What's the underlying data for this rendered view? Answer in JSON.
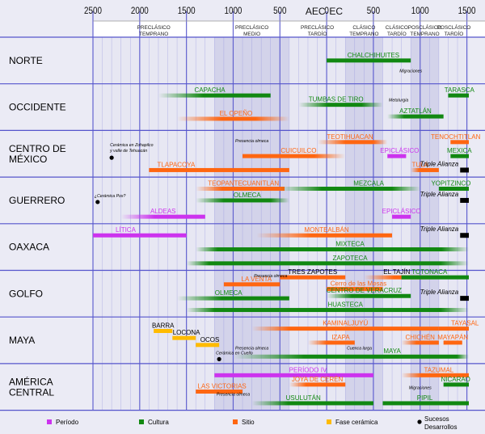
{
  "colors": {
    "periodo": "#cc33ee",
    "cultura": "#118811",
    "sitio": "#ff6611",
    "fase": "#ffbb00",
    "evento": "#000000",
    "band_light": "#e7e7f3",
    "band_dark": "#d3d3ea",
    "grid": "#8888dd",
    "grid_main": "#5555cc"
  },
  "chart_data": {
    "type": "timeline",
    "x_ticks": [
      -2500,
      -2000,
      -1500,
      -1000,
      -500,
      0,
      500,
      1000,
      1500
    ],
    "x_tick_labels": [
      "2500",
      "2000",
      "1500",
      "1000",
      "500",
      "0",
      "500",
      "1000",
      "1500"
    ],
    "era_labels": [
      {
        "text": "AEC",
        "x": -120
      },
      {
        "text": "EC",
        "x": 100
      }
    ],
    "xlim": [
      -2500,
      1521
    ],
    "periods": [
      {
        "start": -2500,
        "end": -1200,
        "shade": "light",
        "lines": [
          "PRECLÁSICO",
          "TEMPRANO"
        ]
      },
      {
        "start": -1200,
        "end": -400,
        "shade": "dark",
        "lines": [
          "PRECLÁSICO",
          "MEDIO"
        ]
      },
      {
        "start": -400,
        "end": 200,
        "shade": "light",
        "lines": [
          "PRECLÁSICO",
          "TARDÍO"
        ]
      },
      {
        "start": 200,
        "end": 600,
        "shade": "dark",
        "lines": [
          "CLÁSICO",
          "TEMPRANO"
        ]
      },
      {
        "start": 600,
        "end": 900,
        "shade": "light",
        "lines": [
          "CLÁSICO",
          "TARDÍO"
        ]
      },
      {
        "start": 900,
        "end": 1200,
        "shade": "dark",
        "lines": [
          "POSCLÁSICO",
          "TEMPRANO"
        ]
      },
      {
        "start": 1200,
        "end": 1521,
        "shade": "light",
        "lines": [
          "POSCLÁSICO",
          "TARDÍO"
        ]
      }
    ],
    "regions": [
      {
        "lines": [
          "NORTE"
        ],
        "bars": [
          {
            "label": "CHALCHIHUITES",
            "start": 0,
            "end": 900,
            "type": "cultura",
            "row": 0.5,
            "lx": 500
          }
        ],
        "events": [
          {
            "label": "Migraciones",
            "x": 900,
            "row": 0.75
          }
        ]
      },
      {
        "lines": [
          "OCCIDENTE"
        ],
        "bars": [
          {
            "label": "CAPACHA",
            "start": -1800,
            "end": -600,
            "type": "cultura",
            "row": 0.25,
            "fade_left": 0.4,
            "lx": -1250
          },
          {
            "label": "TARASCA",
            "start": 1300,
            "end": 1521,
            "type": "cultura",
            "row": 0.25,
            "lx": 1420
          },
          {
            "label": "TUMBAS DE TIRO",
            "start": -300,
            "end": 600,
            "type": "cultura",
            "row": 0.45,
            "fade_left": 0.35,
            "fade_right": 0.25,
            "lx": 100
          },
          {
            "label": "AZTATLÁN",
            "start": 650,
            "end": 1250,
            "type": "cultura",
            "row": 0.7,
            "fade_left": 0.3,
            "lx": 950
          },
          {
            "label": "EL OPEÑO",
            "start": -1600,
            "end": -400,
            "type": "sitio",
            "row": 0.75,
            "fade_left": 0.4,
            "fade_right": 0.3,
            "lx": -970
          }
        ],
        "events": [
          {
            "label": "Metalurgia",
            "x": 770,
            "row": 0.38
          }
        ]
      },
      {
        "lines": [
          "CENTRO DE",
          "MÉXICO"
        ],
        "bars": [
          {
            "label": "TEOTIHUACAN",
            "start": -100,
            "end": 650,
            "type": "sitio",
            "row": 0.25,
            "fade_left": 0.4,
            "fade_right": 0.2,
            "lx": 250
          },
          {
            "label": "TENOCHTITLAN",
            "start": 1325,
            "end": 1521,
            "type": "sitio",
            "row": 0.25,
            "lx": 1380
          },
          {
            "label": "CUICUILCO",
            "start": -900,
            "end": 200,
            "type": "sitio",
            "row": 0.55,
            "fade_right": 0.3,
            "lx": -300
          },
          {
            "label": "EPICLÁSICO",
            "start": 650,
            "end": 850,
            "type": "periodo",
            "row": 0.55,
            "lx": 780
          },
          {
            "label": "MEXICA",
            "start": 1325,
            "end": 1521,
            "type": "cultura",
            "row": 0.55,
            "lx": 1420
          },
          {
            "label": "TLAPACOYA",
            "start": -1900,
            "end": -400,
            "type": "sitio",
            "row": 0.85,
            "lx": -1610
          },
          {
            "label": "TULA",
            "start": 900,
            "end": 1200,
            "type": "sitio",
            "row": 0.85,
            "fade_left": 0.3,
            "lx": 1000
          },
          {
            "label": "Triple Alianza",
            "start": 1428,
            "end": 1521,
            "type": "evento",
            "row": 0.85,
            "italic": true,
            "lx": 1290
          }
        ],
        "events": [
          {
            "label": "Cerámica en Zohapilco",
            "label2": "y valle de Tehuacán",
            "x": -2300,
            "row": 0.55,
            "dot": true
          },
          {
            "label": "Presencia olmeca",
            "x": -800,
            "row": 0.25
          }
        ]
      },
      {
        "lines": [
          "GUERRERO"
        ],
        "bars": [
          {
            "label": "TEOPANTECUANITLÁN",
            "start": -1400,
            "end": -450,
            "type": "sitio",
            "row": 0.25,
            "fade_left": 0.3,
            "lx": -890
          },
          {
            "label": "MEZCALA",
            "start": -500,
            "end": 1000,
            "type": "cultura",
            "row": 0.25,
            "fade_left": 0.3,
            "fade_right": 0.2,
            "lx": 450
          },
          {
            "label": "YOPITZINCO",
            "start": 1200,
            "end": 1521,
            "type": "cultura",
            "row": 0.25,
            "lx": 1330
          },
          {
            "label": "OLMECA",
            "start": -1400,
            "end": -400,
            "type": "cultura",
            "row": 0.5,
            "fade_left": 0.3,
            "fade_right": 0.2,
            "lx": -850
          },
          {
            "label": "Triple Alianza",
            "start": 1428,
            "end": 1521,
            "type": "evento",
            "row": 0.5,
            "italic": true,
            "lx": 1290
          },
          {
            "label": "ALDEAS",
            "start": -2200,
            "end": -1300,
            "type": "periodo",
            "row": 0.85,
            "fade_left": 0.4,
            "lx": -1750
          },
          {
            "label": "EPICLÁSICO",
            "start": 700,
            "end": 900,
            "type": "periodo",
            "row": 0.85,
            "lx": 800
          }
        ],
        "events": [
          {
            "label": "¿Cerámica Pox?",
            "x": -2450,
            "row": 0.5,
            "dot": true
          }
        ]
      },
      {
        "lines": [
          "OAXACA"
        ],
        "bars": [
          {
            "label": "LÍTICA",
            "start": -2500,
            "end": -1500,
            "type": "periodo",
            "row": 0.25,
            "lx": -2150
          },
          {
            "label": "MONTEALBÁN",
            "start": -750,
            "end": 700,
            "type": "sitio",
            "row": 0.25,
            "fade_left": 0.4,
            "lx": 0
          },
          {
            "label": "Triple Alianza",
            "start": 1428,
            "end": 1521,
            "type": "evento",
            "row": 0.25,
            "italic": true,
            "lx": 1290
          },
          {
            "label": "MIXTECA",
            "start": -1400,
            "end": 1521,
            "type": "cultura",
            "row": 0.55,
            "fade_left": 0.08,
            "fade_right": 0.1,
            "lx": 250
          },
          {
            "label": "ZAPOTECA",
            "start": -1500,
            "end": 1521,
            "type": "cultura",
            "row": 0.85,
            "fade_left": 0.08,
            "fade_right": 0.1,
            "lx": 250
          }
        ],
        "events": []
      },
      {
        "lines": [
          "GOLFO"
        ],
        "bars": [
          {
            "label": "TRES ZAPOTES",
            "start": -500,
            "end": 200,
            "type": "sitio",
            "row": 0.15,
            "lx": -150,
            "dark_label": true
          },
          {
            "label": "EL TAJÍN",
            "start": 400,
            "end": 1200,
            "type": "sitio",
            "row": 0.15,
            "fade_left": 0.4,
            "fade_right": 0.3,
            "lx": 750,
            "dark_label": true
          },
          {
            "label": "TOTONACA",
            "start": 800,
            "end": 1521,
            "type": "cultura",
            "row": 0.15,
            "lx": 1100
          },
          {
            "label": "LA VENTA",
            "start": -1100,
            "end": -500,
            "type": "sitio",
            "row": 0.3,
            "lx": -750
          },
          {
            "label": "Cerro de las Mesas",
            "start": 0,
            "end": 600,
            "type": "sitio",
            "row": 0.4,
            "lx": 340
          },
          {
            "label": "CENTRO DE VERACRUZ",
            "start": 0,
            "end": 900,
            "type": "cultura",
            "row": 0.55,
            "fade_left": 0.3,
            "lx": 400
          },
          {
            "label": "OLMECA",
            "start": -1600,
            "end": -400,
            "type": "cultura",
            "row": 0.6,
            "fade_left": 0.4,
            "lx": -1050
          },
          {
            "label": "Triple Alianza",
            "start": 1428,
            "end": 1521,
            "type": "evento",
            "row": 0.6,
            "italic": true,
            "lx": 1290
          },
          {
            "label": "HUASTECA",
            "start": -1500,
            "end": 1521,
            "type": "cultura",
            "row": 0.85,
            "fade_left": 0.1,
            "fade_right": 0.1,
            "lx": 200
          }
        ],
        "events": [
          {
            "label": "Presencia olmeca",
            "x": -600,
            "row": 0.15
          }
        ]
      },
      {
        "lines": [
          "MAYA"
        ],
        "bars": [
          {
            "label": "BARRA",
            "start": -1850,
            "end": -1650,
            "type": "fase",
            "row": 0.3,
            "lx": -1750
          },
          {
            "label": "LOCONA",
            "start": -1650,
            "end": -1400,
            "type": "fase",
            "row": 0.45,
            "lx": -1500
          },
          {
            "label": "OCOS",
            "start": -1400,
            "end": -1150,
            "type": "fase",
            "row": 0.6,
            "lx": -1250
          },
          {
            "label": "KAMINALJUYÚ",
            "start": -800,
            "end": 1200,
            "type": "sitio",
            "row": 0.25,
            "fade_left": 0.2,
            "lx": 200
          },
          {
            "label": "TAYASAL",
            "start": 1200,
            "end": 1521,
            "type": "sitio",
            "row": 0.25,
            "lx": 1480
          },
          {
            "label": "IZAPA",
            "start": -200,
            "end": 300,
            "type": "sitio",
            "row": 0.55,
            "fade_left": 0.4,
            "lx": 150
          },
          {
            "label": "CHICHÉN",
            "start": 800,
            "end": 1200,
            "type": "sitio",
            "row": 0.55,
            "fade_left": 0.4,
            "lx": 1000
          },
          {
            "label": "MAYAPÁN",
            "start": 1250,
            "end": 1450,
            "type": "sitio",
            "row": 0.55,
            "lx": 1350
          },
          {
            "label": "MAYA",
            "start": -1000,
            "end": 1521,
            "type": "cultura",
            "row": 0.85,
            "fade_left": 0.3,
            "fade_right": 0.05,
            "lx": 700
          }
        ],
        "events": [
          {
            "label": "Presencia olmeca",
            "x": -800,
            "row": 0.7
          },
          {
            "label": "Cuenca larga",
            "x": 350,
            "row": 0.7
          },
          {
            "label": "Cerámica en Cuello",
            "x": -1150,
            "row": 0.87,
            "dot": true
          }
        ]
      },
      {
        "lines": [
          "AMÉRICA",
          "CENTRAL"
        ],
        "bars": [
          {
            "label": "PERÍODO IV",
            "start": -1200,
            "end": 500,
            "type": "periodo",
            "row": 0.25,
            "lx": -200
          },
          {
            "label": "TAZUMAL",
            "start": 800,
            "end": 1521,
            "type": "sitio",
            "row": 0.25,
            "fade_left": 0.3,
            "lx": 1200
          },
          {
            "label": "JOYA DE CERÉN",
            "start": -400,
            "end": 200,
            "type": "sitio",
            "row": 0.45,
            "fade_left": 0.3,
            "lx": -100
          },
          {
            "label": "NICARAO",
            "start": 1250,
            "end": 1521,
            "type": "cultura",
            "row": 0.45,
            "lx": 1380
          },
          {
            "label": "LAS VICTORIAS",
            "start": -1400,
            "end": -900,
            "type": "sitio",
            "row": 0.6,
            "lx": -1120
          },
          {
            "label": "USULUTÁN",
            "start": -800,
            "end": 500,
            "type": "cultura",
            "row": 0.85,
            "fade_left": 0.3,
            "lx": -250
          },
          {
            "label": "PIPIL",
            "start": 600,
            "end": 1521,
            "type": "cultura",
            "row": 0.85,
            "lx": 1050
          }
        ],
        "events": [
          {
            "label": "Presencia olmeca",
            "x": -1000,
            "row": 0.69
          },
          {
            "label": "Migraciones",
            "x": 1000,
            "row": 0.55
          }
        ]
      }
    ],
    "legend": [
      {
        "key": "periodo",
        "label": "Período"
      },
      {
        "key": "cultura",
        "label": "Cultura"
      },
      {
        "key": "sitio",
        "label": "Sitio"
      },
      {
        "key": "fase",
        "label": "Fase cerámica"
      },
      {
        "key": "evento",
        "label": "Sucesos",
        "label2": "Desarrollos"
      }
    ]
  }
}
